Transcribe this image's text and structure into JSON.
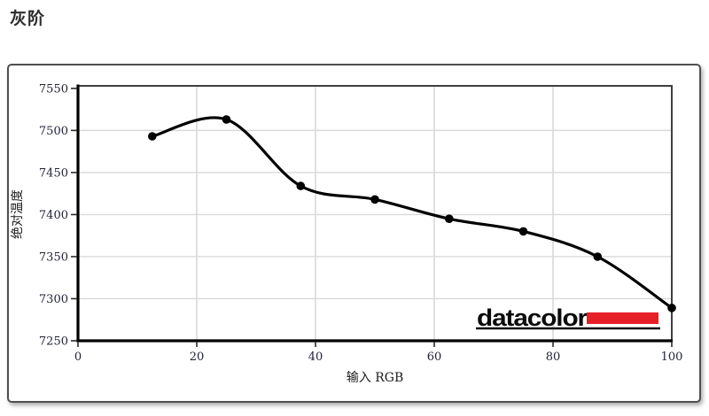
{
  "page": {
    "title": "灰阶"
  },
  "chart_data": {
    "type": "line",
    "title": "灰阶",
    "xlabel": "输入 RGB",
    "ylabel": "绝对温度",
    "x": [
      12.5,
      25,
      37.5,
      50,
      62.5,
      75,
      87.5,
      100
    ],
    "y": [
      7493,
      7513,
      7434,
      7418,
      7395,
      7380,
      7350,
      7289
    ],
    "xlim": [
      0,
      100
    ],
    "ylim": [
      7250,
      7553
    ],
    "xticks": [
      0,
      20,
      40,
      60,
      80,
      100
    ],
    "yticks": [
      7250,
      7300,
      7350,
      7400,
      7450,
      7500,
      7550
    ],
    "grid": true,
    "legend": "none",
    "line_color": "#000000",
    "marker_color": "#000000",
    "gridline_color": "#d9d9d9",
    "axis_color": "#000000",
    "frame_color": "#3f3f3f",
    "tick_color": "#2a2a2a"
  },
  "logo": {
    "text": "datacolor",
    "bar_color": "#e62029",
    "underline_color": "#111111"
  }
}
